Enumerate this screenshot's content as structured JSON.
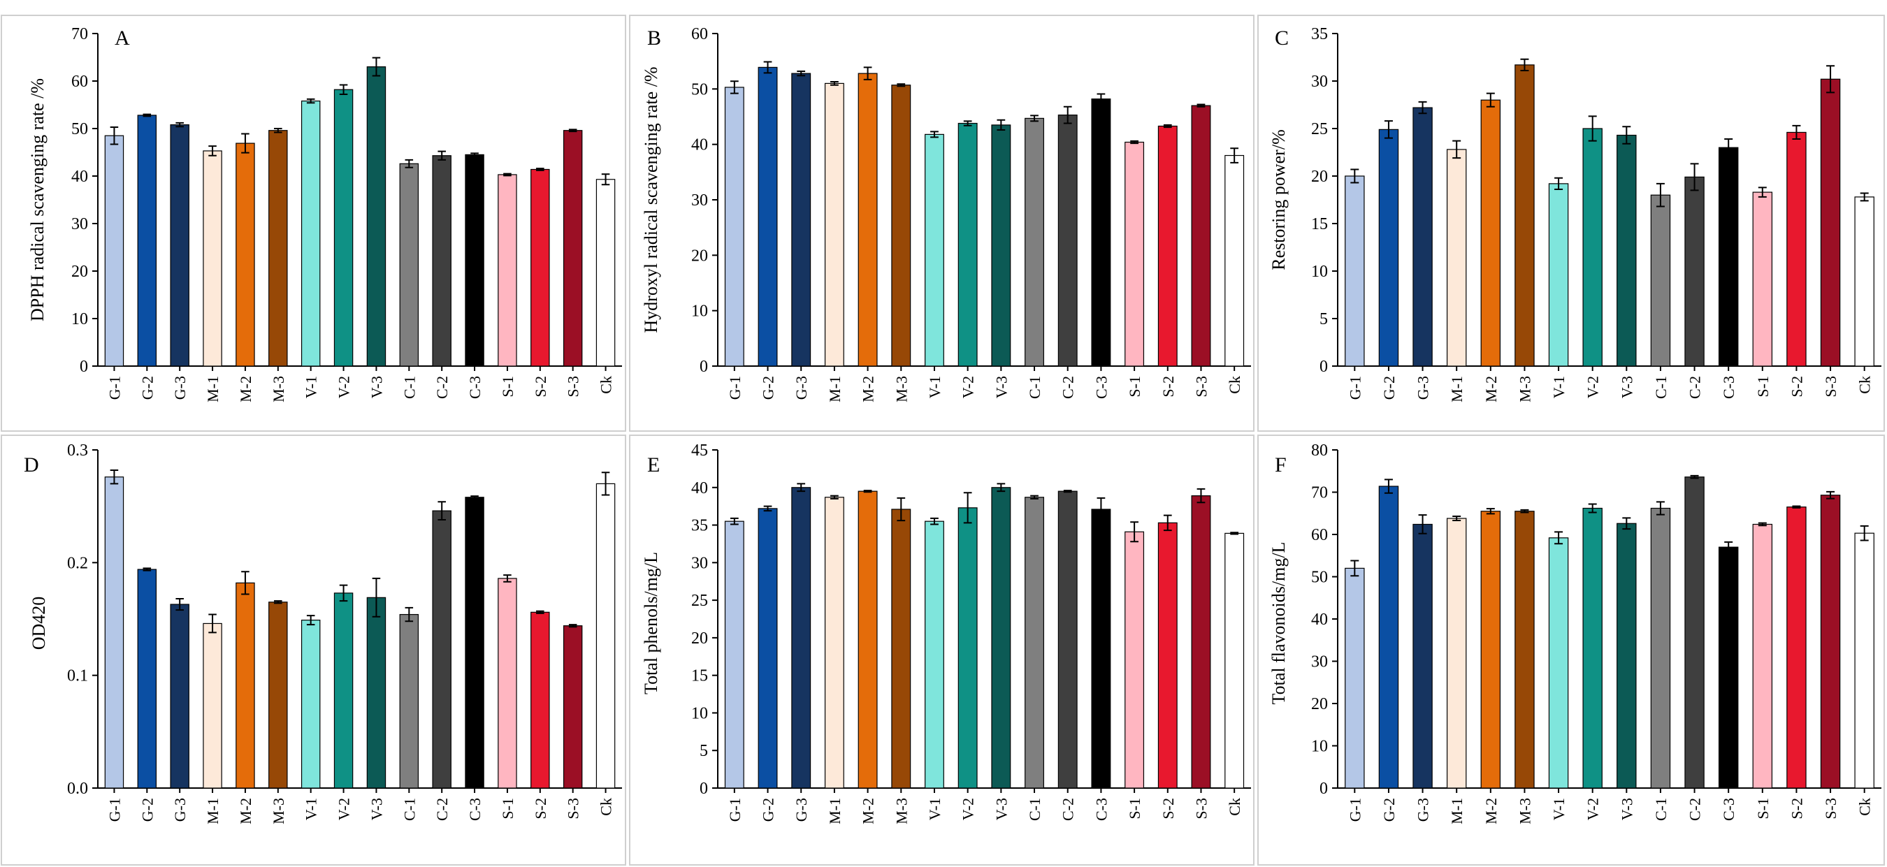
{
  "figure": {
    "colors": {
      "G-1": "#b4c7e7",
      "G-2": "#0b4fa3",
      "G-3": "#163460",
      "M-1": "#fde9d9",
      "M-2": "#e46c0a",
      "M-3": "#974806",
      "V-1": "#7fe5dc",
      "V-2": "#0f9185",
      "V-3": "#0c5a55",
      "C-1": "#7f7f7f",
      "C-2": "#3f3f3f",
      "C-3": "#000000",
      "S-1": "#ffb6c1",
      "S-2": "#e8182e",
      "S-3": "#9b0f25",
      "Ck": "#ffffff"
    }
  },
  "chart_data": [
    {
      "panel": "A",
      "type": "bar",
      "ylabel": "DPPH radical scavenging rate /%",
      "ylim": [
        0,
        70
      ],
      "yticks": [
        "0",
        "10",
        "20",
        "30",
        "40",
        "50",
        "60",
        "70"
      ],
      "categories": [
        "G-1",
        "G-2",
        "G-3",
        "M-1",
        "M-2",
        "M-3",
        "V-1",
        "V-2",
        "V-3",
        "C-1",
        "C-2",
        "C-3",
        "S-1",
        "S-2",
        "S-3",
        "Ck"
      ],
      "values": [
        48.5,
        52.8,
        50.8,
        45.3,
        46.9,
        49.6,
        55.8,
        58.2,
        63.0,
        42.6,
        44.3,
        44.5,
        40.3,
        41.4,
        49.6,
        39.3
      ],
      "errors": [
        1.8,
        0.2,
        0.4,
        1.0,
        2.0,
        0.4,
        0.4,
        1.0,
        1.9,
        0.8,
        0.9,
        0.3,
        0.2,
        0.2,
        0.2,
        1.1
      ]
    },
    {
      "panel": "B",
      "type": "bar",
      "ylabel": "Hydroxyl radical scavenging rate /%",
      "ylim": [
        0,
        60
      ],
      "yticks": [
        "0",
        "10",
        "20",
        "30",
        "40",
        "50",
        "60"
      ],
      "categories": [
        "G-1",
        "G-2",
        "G-3",
        "M-1",
        "M-2",
        "M-3",
        "V-1",
        "V-2",
        "V-3",
        "C-1",
        "C-2",
        "C-3",
        "S-1",
        "S-2",
        "S-3",
        "Ck"
      ],
      "values": [
        50.3,
        53.9,
        52.8,
        51.0,
        52.8,
        50.7,
        41.8,
        43.8,
        43.5,
        44.7,
        45.3,
        48.2,
        40.4,
        43.3,
        47.0,
        38.0
      ],
      "errors": [
        1.1,
        1.0,
        0.4,
        0.3,
        1.1,
        0.2,
        0.5,
        0.4,
        0.9,
        0.5,
        1.5,
        0.9,
        0.2,
        0.2,
        0.2,
        1.3
      ]
    },
    {
      "panel": "C",
      "type": "bar",
      "ylabel": "Restoring power/%",
      "ylim": [
        0,
        35
      ],
      "yticks": [
        "0",
        "5",
        "10",
        "15",
        "20",
        "25",
        "30",
        "35"
      ],
      "categories": [
        "G-1",
        "G-2",
        "G-3",
        "M-1",
        "M-2",
        "M-3",
        "V-1",
        "V-2",
        "V-3",
        "C-1",
        "C-2",
        "C-3",
        "S-1",
        "S-2",
        "S-3",
        "Ck"
      ],
      "values": [
        20.0,
        24.9,
        27.2,
        22.8,
        28.0,
        31.7,
        19.2,
        25.0,
        24.3,
        18.0,
        19.9,
        23.0,
        18.3,
        24.6,
        30.2,
        17.8
      ],
      "errors": [
        0.7,
        0.9,
        0.6,
        0.9,
        0.7,
        0.6,
        0.6,
        1.3,
        0.9,
        1.2,
        1.4,
        0.9,
        0.5,
        0.7,
        1.4,
        0.4
      ]
    },
    {
      "panel": "D",
      "type": "bar",
      "ylabel": "OD420",
      "ylim": [
        0,
        0.3
      ],
      "yticks": [
        "0.0",
        "0.1",
        "0.2",
        "0.3"
      ],
      "categories": [
        "G-1",
        "G-2",
        "G-3",
        "M-1",
        "M-2",
        "M-3",
        "V-1",
        "V-2",
        "V-3",
        "C-1",
        "C-2",
        "C-3",
        "S-1",
        "S-2",
        "S-3",
        "Ck"
      ],
      "values": [
        0.276,
        0.194,
        0.163,
        0.146,
        0.182,
        0.165,
        0.149,
        0.173,
        0.169,
        0.154,
        0.246,
        0.258,
        0.186,
        0.156,
        0.144,
        0.27
      ],
      "errors": [
        0.006,
        0.001,
        0.005,
        0.008,
        0.01,
        0.001,
        0.004,
        0.007,
        0.017,
        0.006,
        0.008,
        0.001,
        0.003,
        0.001,
        0.001,
        0.01
      ]
    },
    {
      "panel": "E",
      "type": "bar",
      "ylabel": "Total phenols/mg/L",
      "ylim": [
        0,
        45
      ],
      "yticks": [
        "0",
        "5",
        "10",
        "15",
        "20",
        "25",
        "30",
        "35",
        "40",
        "45"
      ],
      "categories": [
        "G-1",
        "G-2",
        "G-3",
        "M-1",
        "M-2",
        "M-3",
        "V-1",
        "V-2",
        "V-3",
        "C-1",
        "C-2",
        "C-3",
        "S-1",
        "S-2",
        "S-3",
        "Ck"
      ],
      "values": [
        35.5,
        37.2,
        40.0,
        38.7,
        39.5,
        37.1,
        35.5,
        37.3,
        40.0,
        38.7,
        39.5,
        37.1,
        34.1,
        35.3,
        38.9,
        33.9
      ],
      "errors": [
        0.4,
        0.3,
        0.5,
        0.2,
        0.1,
        1.5,
        0.4,
        2.0,
        0.5,
        0.2,
        0.1,
        1.5,
        1.3,
        1.0,
        0.9,
        0.1
      ]
    },
    {
      "panel": "F",
      "type": "bar",
      "ylabel": "Total flavonoids/mg/L",
      "ylim": [
        0,
        80
      ],
      "yticks": [
        "0",
        "10",
        "20",
        "30",
        "40",
        "50",
        "60",
        "70",
        "80"
      ],
      "categories": [
        "G-1",
        "G-2",
        "G-3",
        "M-1",
        "M-2",
        "M-3",
        "V-1",
        "V-2",
        "V-3",
        "C-1",
        "C-2",
        "C-3",
        "S-1",
        "S-2",
        "S-3",
        "Ck"
      ],
      "values": [
        52.0,
        71.4,
        62.4,
        63.8,
        65.5,
        65.5,
        59.2,
        66.2,
        62.6,
        66.2,
        73.6,
        57.0,
        62.4,
        66.5,
        69.3,
        60.3
      ],
      "errors": [
        1.8,
        1.6,
        2.2,
        0.5,
        0.6,
        0.3,
        1.4,
        1.0,
        1.3,
        1.5,
        0.3,
        1.2,
        0.3,
        0.2,
        0.8,
        1.7
      ]
    }
  ]
}
